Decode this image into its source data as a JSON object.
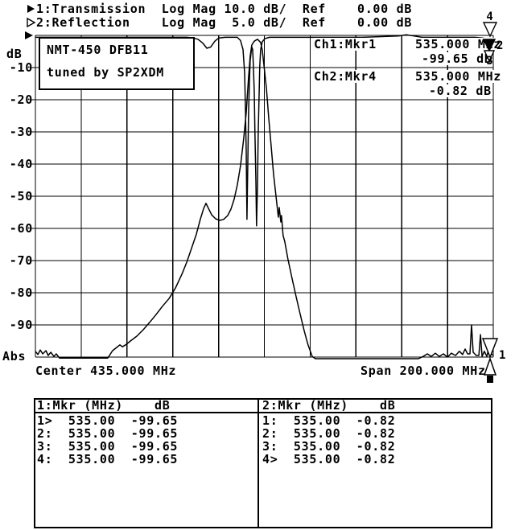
{
  "colors": {
    "foreground": "#000000",
    "background": "#ffffff"
  },
  "header": {
    "rows": [
      {
        "icon": "filled-right-triangle",
        "text": "1:Transmission  Log Mag 10.0 dB/  Ref    0.00 dB"
      },
      {
        "icon": "open-right-triangle",
        "text": "2:Reflection    Log Mag  5.0 dB/  Ref    0.00 dB"
      }
    ]
  },
  "plot": {
    "device_label": {
      "line1": "NMT-450 DFB11",
      "line2": "tuned by SP2XDM"
    },
    "readouts": [
      {
        "channel": "Ch1:Mkr1",
        "freq": "535.000 MHz",
        "level": "-99.65 dB"
      },
      {
        "channel": "Ch2:Mkr4",
        "freq": "535.000 MHz",
        "level": "-0.82 dB"
      }
    ],
    "edge_markers": {
      "top": [
        {
          "label": "4",
          "shape": "open-down-triangle"
        },
        {
          "label": "2",
          "shape": "filled-down-triangle"
        },
        {
          "label": "3",
          "shape": "open-down-triangle"
        }
      ],
      "bottom": [
        {
          "label": "1",
          "shape": "open-down-triangle"
        },
        {
          "label": "",
          "shape": "open-up-triangle"
        },
        {
          "label": "",
          "shape": "filled-square"
        }
      ]
    }
  },
  "chart_data": {
    "type": "line",
    "title": "",
    "grid": true,
    "x_axis": {
      "left_label": "Center 435.000 MHz",
      "right_label": "Span 200.000 MHz",
      "center_mhz": 435.0,
      "span_mhz": 200.0,
      "min_mhz": 335,
      "max_mhz": 535,
      "divisions": 10
    },
    "y_axis": {
      "label": "dB",
      "bottom_label": "Abs",
      "tick_labels": [
        "-10",
        "-20",
        "-30",
        "-40",
        "-50",
        "-60",
        "-70",
        "-80",
        "-90"
      ],
      "divisions": 10
    },
    "series": [
      {
        "name": "Transmission",
        "scale_db_per_div": 10,
        "ref_db": 0.0,
        "points": [
          [
            335.0,
            -98.2
          ],
          [
            336.1,
            -99.2
          ],
          [
            337.1,
            -97.8
          ],
          [
            338.2,
            -99.0
          ],
          [
            339.6,
            -98.0
          ],
          [
            340.6,
            -99.5
          ],
          [
            341.7,
            -98.5
          ],
          [
            343.1,
            -99.8
          ],
          [
            344.1,
            -99.0
          ],
          [
            345.5,
            -100.3
          ],
          [
            366.6,
            -100.3
          ],
          [
            368.7,
            -98.0
          ],
          [
            370.5,
            -97.0
          ],
          [
            371.9,
            -96.2
          ],
          [
            373.0,
            -96.8
          ],
          [
            374.4,
            -96.2
          ],
          [
            376.5,
            -95.0
          ],
          [
            379.3,
            -93.5
          ],
          [
            382.1,
            -91.5
          ],
          [
            384.9,
            -89.2
          ],
          [
            387.7,
            -86.8
          ],
          [
            390.5,
            -84.2
          ],
          [
            393.4,
            -81.8
          ],
          [
            396.2,
            -78.5
          ],
          [
            399.0,
            -74.2
          ],
          [
            401.1,
            -70.5
          ],
          [
            403.2,
            -66.2
          ],
          [
            405.3,
            -61.8
          ],
          [
            407.1,
            -57.0
          ],
          [
            408.5,
            -53.8
          ],
          [
            409.5,
            -52.2
          ],
          [
            410.6,
            -53.8
          ],
          [
            412.0,
            -55.8
          ],
          [
            413.7,
            -57.0
          ],
          [
            415.5,
            -57.5
          ],
          [
            417.2,
            -57.2
          ],
          [
            419.0,
            -56.0
          ],
          [
            420.4,
            -54.0
          ],
          [
            421.8,
            -51.0
          ],
          [
            423.2,
            -46.5
          ],
          [
            424.6,
            -40.5
          ],
          [
            426.0,
            -32.0
          ],
          [
            427.1,
            -24.0
          ],
          [
            428.1,
            -13.0
          ],
          [
            428.8,
            -6.5
          ],
          [
            429.5,
            -3.0
          ],
          [
            430.6,
            -1.8
          ],
          [
            432.0,
            -1.2
          ],
          [
            433.4,
            -2.2
          ],
          [
            434.1,
            -4.5
          ],
          [
            434.8,
            -9.0
          ],
          [
            435.9,
            -16.5
          ],
          [
            436.9,
            -25.5
          ],
          [
            438.0,
            -34.5
          ],
          [
            439.0,
            -43.0
          ],
          [
            440.1,
            -50.0
          ],
          [
            440.8,
            -54.5
          ],
          [
            441.1,
            -56.5
          ],
          [
            441.5,
            -53.5
          ],
          [
            442.2,
            -58.0
          ],
          [
            442.5,
            -56.0
          ],
          [
            443.2,
            -62.2
          ],
          [
            443.9,
            -64.0
          ],
          [
            445.3,
            -69.5
          ],
          [
            447.1,
            -75.5
          ],
          [
            448.8,
            -81.0
          ],
          [
            450.6,
            -86.5
          ],
          [
            452.4,
            -91.8
          ],
          [
            454.1,
            -96.2
          ],
          [
            455.9,
            -99.8
          ],
          [
            457.3,
            -100.5
          ],
          [
            502.3,
            -100.5
          ],
          [
            504.4,
            -99.8
          ],
          [
            506.2,
            -99.0
          ],
          [
            507.9,
            -99.8
          ],
          [
            509.7,
            -98.8
          ],
          [
            511.4,
            -99.8
          ],
          [
            513.2,
            -99.0
          ],
          [
            515.0,
            -100.0
          ],
          [
            516.7,
            -98.8
          ],
          [
            518.5,
            -99.5
          ],
          [
            520.2,
            -98.2
          ],
          [
            521.6,
            -99.2
          ],
          [
            522.7,
            -97.5
          ],
          [
            523.8,
            -99.0
          ],
          [
            524.8,
            -99.0
          ],
          [
            525.5,
            -90.0
          ],
          [
            526.2,
            -98.5
          ],
          [
            527.6,
            -99.5
          ],
          [
            528.7,
            -99.5
          ],
          [
            529.4,
            -93.0
          ],
          [
            530.1,
            -99.8
          ],
          [
            531.1,
            -98.2
          ],
          [
            532.2,
            -99.8
          ],
          [
            533.2,
            -96.8
          ],
          [
            533.9,
            -98.8
          ],
          [
            535.0,
            -99.5
          ]
        ]
      },
      {
        "name": "Reflection",
        "scale_db_per_div": 5,
        "ref_db": 0.0,
        "points": [
          [
            335.0,
            -0.3
          ],
          [
            401.1,
            -0.3
          ],
          [
            403.9,
            -0.4
          ],
          [
            406.0,
            -0.6
          ],
          [
            408.1,
            -1.2
          ],
          [
            409.9,
            -2.0
          ],
          [
            411.6,
            -1.8
          ],
          [
            413.4,
            -0.9
          ],
          [
            415.1,
            -0.4
          ],
          [
            417.9,
            -0.3
          ],
          [
            423.2,
            -0.3
          ],
          [
            424.6,
            -0.8
          ],
          [
            425.7,
            -2.2
          ],
          [
            426.4,
            -5.8
          ],
          [
            426.7,
            -10.8
          ],
          [
            427.1,
            -18.2
          ],
          [
            427.4,
            -28.6
          ],
          [
            427.8,
            -19.5
          ],
          [
            428.1,
            -12.0
          ],
          [
            428.5,
            -7.0
          ],
          [
            428.8,
            -3.9
          ],
          [
            429.5,
            -1.8
          ],
          [
            429.9,
            -2.2
          ],
          [
            430.2,
            -4.5
          ],
          [
            430.6,
            -8.9
          ],
          [
            430.9,
            -15.1
          ],
          [
            431.3,
            -22.6
          ],
          [
            431.6,
            -29.6
          ],
          [
            432.0,
            -23.2
          ],
          [
            432.3,
            -15.8
          ],
          [
            432.7,
            -9.2
          ],
          [
            433.0,
            -4.8
          ],
          [
            433.4,
            -2.2
          ],
          [
            434.1,
            -1.0
          ],
          [
            435.2,
            -0.5
          ],
          [
            437.3,
            -0.3
          ],
          [
            460.1,
            -0.3
          ],
          [
            477.7,
            -0.3
          ],
          [
            493.5,
            -0.1
          ],
          [
            497.0,
            0.1
          ],
          [
            500.5,
            -0.1
          ],
          [
            504.0,
            -0.3
          ],
          [
            516.4,
            -0.3
          ],
          [
            526.9,
            -0.3
          ],
          [
            530.4,
            -0.4
          ],
          [
            532.5,
            -0.6
          ],
          [
            533.9,
            -0.8
          ],
          [
            535.0,
            -0.8
          ]
        ]
      }
    ]
  },
  "marker_tables": [
    {
      "header": "1:Mkr (MHz)    dB",
      "rows": [
        {
          "m": "1>",
          "f": "535.00",
          "v": "-99.65"
        },
        {
          "m": "2:",
          "f": "535.00",
          "v": "-99.65"
        },
        {
          "m": "3:",
          "f": "535.00",
          "v": "-99.65"
        },
        {
          "m": "4:",
          "f": "535.00",
          "v": "-99.65"
        }
      ]
    },
    {
      "header": "2:Mkr (MHz)    dB",
      "rows": [
        {
          "m": "1:",
          "f": "535.00",
          "v": "-0.82"
        },
        {
          "m": "2:",
          "f": "535.00",
          "v": "-0.82"
        },
        {
          "m": "3:",
          "f": "535.00",
          "v": "-0.82"
        },
        {
          "m": "4>",
          "f": "535.00",
          "v": "-0.82"
        }
      ]
    }
  ]
}
